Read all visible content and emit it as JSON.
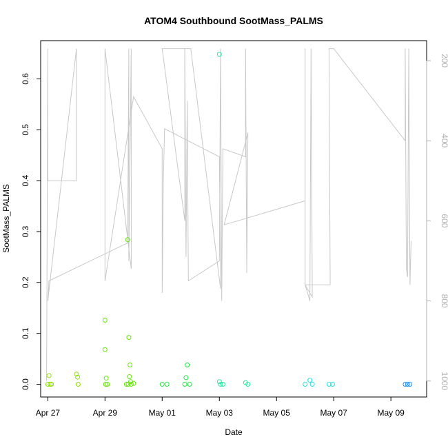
{
  "chart_data": {
    "type": "scatter",
    "title": "ATOM4 Southbound SootMass_PALMS",
    "xlabel": "Date",
    "ylabel": "SootMass_PALMS",
    "x_tick_labels": [
      "Apr 27",
      "Apr 29",
      "May 01",
      "May 03",
      "May 05",
      "May 07",
      "May 09"
    ],
    "x_tick_dates": [
      "2018-04-27",
      "2018-04-29",
      "2018-05-01",
      "2018-05-03",
      "2018-05-05",
      "2018-05-07",
      "2018-05-09"
    ],
    "xlim": [
      "2018-04-26T18:00",
      "2018-05-10T06:00"
    ],
    "ylim": [
      -0.025,
      0.675
    ],
    "y_ticks": [
      0.0,
      0.1,
      0.2,
      0.3,
      0.4,
      0.5,
      0.6
    ],
    "y_tick_labels": [
      "0.0",
      "0.1",
      "0.2",
      "0.3",
      "0.4",
      "0.5",
      "0.6"
    ],
    "right_axis": {
      "color": "#b0b0b0",
      "reversed": true,
      "ticks": [
        200,
        400,
        600,
        800,
        1000
      ],
      "tick_labels": [
        "200",
        "400",
        "600",
        "800",
        "1000"
      ],
      "range": [
        150,
        1040
      ]
    },
    "grid": false,
    "marker": "open-circle",
    "series": [
      {
        "color": "#8ce000",
        "points": [
          [
            "2018-04-27T00:00",
            0.0
          ],
          [
            "2018-04-27T01:00",
            0.017
          ],
          [
            "2018-04-27T02:00",
            0.0
          ],
          [
            "2018-04-27T03:00",
            0.0
          ],
          [
            "2018-04-28T00:00",
            0.02
          ],
          [
            "2018-04-28T01:00",
            0.014
          ],
          [
            "2018-04-28T01:30",
            0.0
          ]
        ]
      },
      {
        "color": "#60e800",
        "points": [
          [
            "2018-04-29T00:00",
            0.126
          ],
          [
            "2018-04-29T00:00",
            0.068
          ],
          [
            "2018-04-29T01:00",
            0.012
          ],
          [
            "2018-04-29T00:30",
            0.0
          ],
          [
            "2018-04-29T02:00",
            0.0
          ],
          [
            "2018-04-29T19:00",
            0.284
          ],
          [
            "2018-04-29T20:00",
            0.092
          ],
          [
            "2018-04-29T21:00",
            0.038
          ],
          [
            "2018-04-29T20:30",
            0.015
          ],
          [
            "2018-04-29T21:30",
            0.005
          ],
          [
            "2018-04-29T18:00",
            0.0
          ],
          [
            "2018-04-29T19:30",
            0.0
          ],
          [
            "2018-04-29T22:00",
            0.0
          ],
          [
            "2018-04-30T00:00",
            0.002
          ]
        ]
      },
      {
        "color": "#20e840",
        "points": [
          [
            "2018-05-01T00:00",
            0.0
          ],
          [
            "2018-05-01T04:00",
            0.0
          ],
          [
            "2018-05-01T20:00",
            0.013
          ],
          [
            "2018-05-01T21:00",
            0.038
          ],
          [
            "2018-05-01T19:00",
            0.0
          ],
          [
            "2018-05-01T23:00",
            0.0
          ]
        ]
      },
      {
        "color": "#20e8a0",
        "points": [
          [
            "2018-05-03T00:00",
            0.648
          ],
          [
            "2018-05-03T00:00",
            0.005
          ],
          [
            "2018-05-03T01:00",
            0.0
          ],
          [
            "2018-05-03T03:00",
            0.0
          ],
          [
            "2018-05-03T22:00",
            0.003
          ],
          [
            "2018-05-04T00:00",
            0.0
          ]
        ]
      },
      {
        "color": "#20e0e0",
        "points": [
          [
            "2018-05-06T00:00",
            0.0
          ],
          [
            "2018-05-06T04:00",
            0.008
          ],
          [
            "2018-05-06T06:00",
            0.0
          ],
          [
            "2018-05-06T20:00",
            0.0
          ],
          [
            "2018-05-06T23:00",
            0.0
          ]
        ]
      },
      {
        "color": "#1e90f0",
        "points": [
          [
            "2018-05-09T12:00",
            0.0
          ],
          [
            "2018-05-09T14:00",
            0.0
          ],
          [
            "2018-05-09T16:00",
            0.0
          ]
        ]
      }
    ],
    "altitude_trace": {
      "color": "#c8c8c8",
      "axis": "right",
      "points": [
        [
          "2018-04-26T23:00",
          1000
        ],
        [
          "2018-04-27T00:00",
          170
        ],
        [
          "2018-04-27T00:00",
          500
        ],
        [
          "2018-04-28T00:00",
          500
        ],
        [
          "2018-04-28T00:00",
          170
        ],
        [
          "2018-04-27T00:00",
          800
        ],
        [
          "2018-04-27T01:00",
          750
        ],
        [
          "2018-04-29T19:00",
          655
        ],
        [
          "2018-04-29T20:00",
          170
        ],
        [
          "2018-04-29T20:00",
          700
        ],
        [
          "2018-04-29T22:00",
          170
        ],
        [
          "2018-04-29T22:00",
          720
        ],
        [
          "2018-04-29T00:00",
          170
        ],
        [
          "2018-04-29T00:00",
          750
        ],
        [
          "2018-04-30T00:00",
          290
        ],
        [
          "2018-05-01T00:00",
          420
        ],
        [
          "2018-05-01T00:00",
          780
        ],
        [
          "2018-05-01T01:00",
          500
        ],
        [
          "2018-05-01T02:00",
          370
        ],
        [
          "2018-05-03T00:00",
          440
        ],
        [
          "2018-05-03T01:00",
          770
        ],
        [
          "2018-05-02T00:00",
          170
        ],
        [
          "2018-05-01T00:00",
          170
        ],
        [
          "2018-05-01T19:00",
          600
        ],
        [
          "2018-05-01T19:00",
          170
        ],
        [
          "2018-05-01T20:00",
          690
        ],
        [
          "2018-05-01T21:00",
          300
        ],
        [
          "2018-05-01T22:00",
          750
        ],
        [
          "2018-05-03T00:00",
          700
        ],
        [
          "2018-05-03T01:00",
          170
        ],
        [
          "2018-05-03T02:00",
          800
        ],
        [
          "2018-05-03T03:00",
          420
        ],
        [
          "2018-05-03T22:00",
          440
        ],
        [
          "2018-05-03T22:00",
          170
        ],
        [
          "2018-05-03T23:00",
          730
        ],
        [
          "2018-05-04T00:00",
          380
        ],
        [
          "2018-05-03T04:00",
          610
        ],
        [
          "2018-05-06T00:00",
          550
        ],
        [
          "2018-05-06T00:00",
          170
        ],
        [
          "2018-05-06T00:00",
          760
        ],
        [
          "2018-05-06T02:00",
          780
        ],
        [
          "2018-05-06T04:00",
          800
        ],
        [
          "2018-05-06T05:00",
          170
        ],
        [
          "2018-05-06T06:00",
          790
        ],
        [
          "2018-05-06T00:00",
          760
        ],
        [
          "2018-05-06T21:00",
          760
        ],
        [
          "2018-05-06T21:00",
          740
        ],
        [
          "2018-05-06T20:00",
          170
        ],
        [
          "2018-05-06T22:00",
          170
        ],
        [
          "2018-05-07T00:00",
          170
        ],
        [
          "2018-05-09T12:00",
          400
        ],
        [
          "2018-05-09T12:00",
          170
        ],
        [
          "2018-05-09T13:00",
          720
        ],
        [
          "2018-05-09T14:00",
          740
        ],
        [
          "2018-05-09T15:00",
          170
        ],
        [
          "2018-05-09T16:00",
          760
        ],
        [
          "2018-05-09T17:00",
          650
        ]
      ]
    }
  }
}
